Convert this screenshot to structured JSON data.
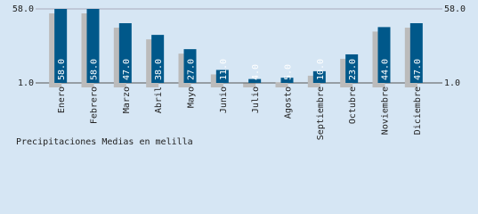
{
  "chart_data": {
    "type": "bar",
    "title": "Precipitaciones Medias en melilla",
    "categories": [
      "Enero",
      "Febrero",
      "Marzo",
      "Abril",
      "Mayo",
      "Junio",
      "Julio",
      "Agosto",
      "Septiembre",
      "Octubre",
      "Noviembre",
      "Diciembre"
    ],
    "values": [
      58,
      58,
      47,
      38,
      27,
      11,
      4,
      5,
      10,
      23,
      44,
      47
    ],
    "value_labels": [
      "58.0",
      "58.0",
      "47.0",
      "38.0",
      "27.0",
      "11.0",
      "4.0",
      "5.0",
      "10.0",
      "23.0",
      "44.0",
      "47.0"
    ],
    "color": "#00588a",
    "shadow_color": "#bbbbbb",
    "ylim": [
      1,
      58
    ],
    "yticks": [
      {
        "value": 1,
        "label": "1.0"
      },
      {
        "value": 58,
        "label": "58.0"
      }
    ],
    "grid": true
  }
}
